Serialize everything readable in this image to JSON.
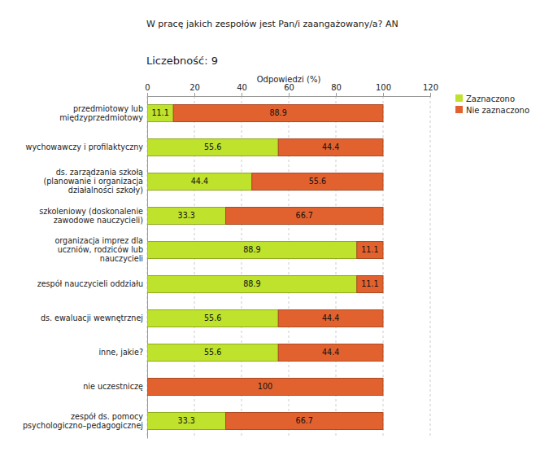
{
  "chart_data": {
    "type": "bar",
    "orientation": "horizontal",
    "stacked": true,
    "data_labels": true,
    "grid": true,
    "legend": "right",
    "title": "W pracę jakich zespołów jest Pan/i zaangażowany/a? AN",
    "subtitle": "Liczebność: 9",
    "xlabel": "Odpowiedzi (%)",
    "xlim": [
      0,
      120
    ],
    "xticks": [
      0,
      20,
      40,
      60,
      80,
      100,
      120
    ],
    "categories": [
      "przedmiotowy lub\nmiędzyprzedmiotowy",
      "wychowawczy i profilaktyczny",
      "ds. zarządzania szkołą\n(planowanie i organizacja\ndziałalności szkoły)",
      "szkoleniowy (doskonalenie\nzawodowe nauczycieli)",
      "organizacja imprez dla\nuczniów, rodziców lub\nnauczycieli",
      "zespół nauczycieli oddziału",
      "ds. ewaluacji wewnętrznej",
      "inne, jakie?",
      "nie uczestniczę",
      "zespół ds. pomocy\npsychologiczno–pedagogicznej"
    ],
    "series": [
      {
        "name": "Zaznaczono",
        "color": "#bfe22c",
        "values": [
          11.1,
          55.6,
          44.4,
          33.3,
          88.9,
          88.9,
          55.6,
          55.6,
          0,
          33.3
        ]
      },
      {
        "name": "Nie zaznaczono",
        "color": "#e2622f",
        "values": [
          88.9,
          44.4,
          55.6,
          66.7,
          11.1,
          11.1,
          44.4,
          44.4,
          100,
          66.7
        ]
      }
    ]
  }
}
